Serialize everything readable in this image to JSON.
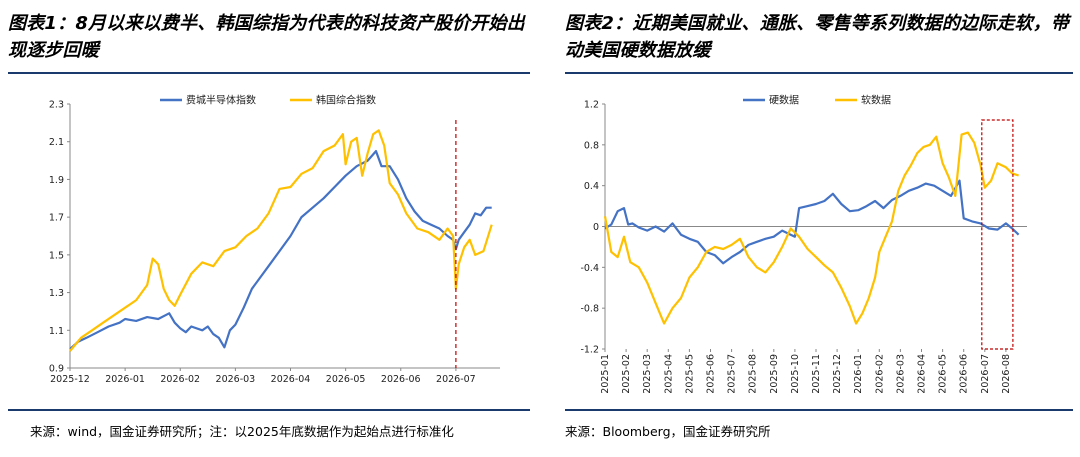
{
  "left": {
    "title": "图表1：8月以来以费半、韩国综指为代表的科技资产股价开始出现逐步回暖",
    "source": "来源：wind，国金证券研究所；注：以2025年底数据作为起始点进行标准化",
    "colors": {
      "sox": "#4472c4",
      "kospi": "#ffc000",
      "marker": "#c00000"
    },
    "chart_data": {
      "type": "line",
      "title": "",
      "xlabel": "",
      "ylabel": "",
      "ylim": [
        0.9,
        2.3
      ],
      "yticks": [
        "0.9",
        "1.1",
        "1.3",
        "1.5",
        "1.7",
        "1.9",
        "2.1",
        "2.3"
      ],
      "xticks": [
        "2025-12",
        "2026-01",
        "2026-02",
        "2026-03",
        "2026-04",
        "2026-05",
        "2026-06",
        "2026-07"
      ],
      "legend": "top-center",
      "grid": false,
      "vertical_marker_x": "2026-07",
      "series": [
        {
          "name": "费城半导体指数",
          "color": "#4472c4",
          "points": [
            [
              0,
              1.0
            ],
            [
              0.15,
              1.04
            ],
            [
              0.3,
              1.06
            ],
            [
              0.5,
              1.09
            ],
            [
              0.7,
              1.12
            ],
            [
              0.9,
              1.14
            ],
            [
              1.0,
              1.16
            ],
            [
              1.2,
              1.15
            ],
            [
              1.4,
              1.17
            ],
            [
              1.6,
              1.16
            ],
            [
              1.8,
              1.19
            ],
            [
              1.9,
              1.14
            ],
            [
              2.0,
              1.11
            ],
            [
              2.1,
              1.09
            ],
            [
              2.2,
              1.12
            ],
            [
              2.4,
              1.1
            ],
            [
              2.5,
              1.12
            ],
            [
              2.6,
              1.08
            ],
            [
              2.7,
              1.06
            ],
            [
              2.8,
              1.01
            ],
            [
              2.9,
              1.1
            ],
            [
              3.0,
              1.13
            ],
            [
              3.15,
              1.22
            ],
            [
              3.3,
              1.32
            ],
            [
              3.45,
              1.38
            ],
            [
              3.6,
              1.44
            ],
            [
              3.8,
              1.52
            ],
            [
              4.0,
              1.6
            ],
            [
              4.2,
              1.7
            ],
            [
              4.4,
              1.75
            ],
            [
              4.6,
              1.8
            ],
            [
              4.8,
              1.86
            ],
            [
              5.0,
              1.92
            ],
            [
              5.2,
              1.97
            ],
            [
              5.4,
              2.0
            ],
            [
              5.55,
              2.05
            ],
            [
              5.65,
              1.97
            ],
            [
              5.8,
              1.97
            ],
            [
              5.95,
              1.9
            ],
            [
              6.1,
              1.8
            ],
            [
              6.25,
              1.73
            ],
            [
              6.4,
              1.68
            ],
            [
              6.55,
              1.66
            ],
            [
              6.7,
              1.64
            ],
            [
              6.85,
              1.6
            ],
            [
              6.95,
              1.58
            ],
            [
              7.0,
              1.53
            ],
            [
              7.05,
              1.58
            ],
            [
              7.15,
              1.62
            ],
            [
              7.25,
              1.66
            ],
            [
              7.35,
              1.72
            ],
            [
              7.45,
              1.71
            ],
            [
              7.55,
              1.75
            ],
            [
              7.65,
              1.75
            ]
          ]
        },
        {
          "name": "韩国综合指数",
          "color": "#ffc000",
          "points": [
            [
              0,
              0.99
            ],
            [
              0.2,
              1.06
            ],
            [
              0.4,
              1.1
            ],
            [
              0.6,
              1.14
            ],
            [
              0.8,
              1.18
            ],
            [
              1.0,
              1.22
            ],
            [
              1.2,
              1.26
            ],
            [
              1.4,
              1.34
            ],
            [
              1.5,
              1.48
            ],
            [
              1.6,
              1.45
            ],
            [
              1.7,
              1.32
            ],
            [
              1.8,
              1.26
            ],
            [
              1.9,
              1.23
            ],
            [
              2.0,
              1.29
            ],
            [
              2.2,
              1.4
            ],
            [
              2.4,
              1.46
            ],
            [
              2.6,
              1.44
            ],
            [
              2.8,
              1.52
            ],
            [
              3.0,
              1.54
            ],
            [
              3.2,
              1.6
            ],
            [
              3.4,
              1.64
            ],
            [
              3.6,
              1.72
            ],
            [
              3.8,
              1.85
            ],
            [
              4.0,
              1.86
            ],
            [
              4.2,
              1.93
            ],
            [
              4.4,
              1.96
            ],
            [
              4.6,
              2.05
            ],
            [
              4.8,
              2.08
            ],
            [
              4.95,
              2.14
            ],
            [
              5.0,
              1.98
            ],
            [
              5.1,
              2.1
            ],
            [
              5.2,
              2.12
            ],
            [
              5.3,
              1.92
            ],
            [
              5.4,
              2.04
            ],
            [
              5.5,
              2.14
            ],
            [
              5.6,
              2.16
            ],
            [
              5.7,
              2.08
            ],
            [
              5.8,
              1.88
            ],
            [
              5.95,
              1.82
            ],
            [
              6.1,
              1.72
            ],
            [
              6.3,
              1.64
            ],
            [
              6.5,
              1.62
            ],
            [
              6.7,
              1.58
            ],
            [
              6.85,
              1.64
            ],
            [
              6.95,
              1.6
            ],
            [
              7.0,
              1.32
            ],
            [
              7.05,
              1.45
            ],
            [
              7.15,
              1.54
            ],
            [
              7.25,
              1.58
            ],
            [
              7.35,
              1.5
            ],
            [
              7.5,
              1.52
            ],
            [
              7.65,
              1.66
            ]
          ]
        }
      ]
    }
  },
  "right": {
    "title": "图表2：近期美国就业、通胀、零售等系列数据的边际走软，带动美国硬数据放缓",
    "source": "来源：Bloomberg，国金证券研究所",
    "colors": {
      "hard": "#4472c4",
      "soft": "#ffc000",
      "box": "#c00000"
    },
    "chart_data": {
      "type": "line",
      "title": "",
      "xlabel": "",
      "ylabel": "",
      "ylim": [
        -1.2,
        1.2
      ],
      "yticks": [
        "-1.2",
        "-0.8",
        "-0.4",
        "0",
        "0.4",
        "0.8",
        "1.2"
      ],
      "xticks": [
        "2025-01",
        "2025-02",
        "2025-03",
        "2025-04",
        "2025-05",
        "2025-06",
        "2025-07",
        "2025-08",
        "2025-09",
        "2025-10",
        "2025-11",
        "2025-12",
        "2026-01",
        "2026-02",
        "2026-03",
        "2026-04",
        "2026-05",
        "2026-06",
        "2026-07",
        "2026-08"
      ],
      "legend": "top-left",
      "grid": false,
      "highlight_box_x": [
        "2026-07",
        "2026-08"
      ],
      "series": [
        {
          "name": "硬数据",
          "color": "#4472c4",
          "points": [
            [
              0,
              -0.02
            ],
            [
              0.3,
              0.02
            ],
            [
              0.6,
              0.15
            ],
            [
              0.9,
              0.18
            ],
            [
              1.1,
              0.02
            ],
            [
              1.3,
              0.03
            ],
            [
              1.6,
              -0.01
            ],
            [
              2.0,
              -0.04
            ],
            [
              2.4,
              0.0
            ],
            [
              2.8,
              -0.05
            ],
            [
              3.2,
              0.03
            ],
            [
              3.6,
              -0.08
            ],
            [
              4.0,
              -0.12
            ],
            [
              4.4,
              -0.15
            ],
            [
              4.8,
              -0.25
            ],
            [
              5.2,
              -0.28
            ],
            [
              5.6,
              -0.36
            ],
            [
              6.0,
              -0.3
            ],
            [
              6.4,
              -0.25
            ],
            [
              6.8,
              -0.18
            ],
            [
              7.2,
              -0.15
            ],
            [
              7.6,
              -0.12
            ],
            [
              8.0,
              -0.1
            ],
            [
              8.4,
              -0.04
            ],
            [
              8.8,
              -0.08
            ],
            [
              9.0,
              -0.1
            ],
            [
              9.2,
              0.18
            ],
            [
              9.6,
              0.2
            ],
            [
              10.0,
              0.22
            ],
            [
              10.4,
              0.25
            ],
            [
              10.8,
              0.32
            ],
            [
              11.2,
              0.22
            ],
            [
              11.6,
              0.15
            ],
            [
              12.0,
              0.16
            ],
            [
              12.4,
              0.2
            ],
            [
              12.8,
              0.25
            ],
            [
              13.2,
              0.18
            ],
            [
              13.6,
              0.26
            ],
            [
              14.0,
              0.3
            ],
            [
              14.4,
              0.35
            ],
            [
              14.8,
              0.38
            ],
            [
              15.2,
              0.42
            ],
            [
              15.6,
              0.4
            ],
            [
              16.0,
              0.35
            ],
            [
              16.4,
              0.3
            ],
            [
              16.8,
              0.45
            ],
            [
              17.0,
              0.08
            ],
            [
              17.4,
              0.05
            ],
            [
              17.8,
              0.03
            ],
            [
              18.2,
              -0.02
            ],
            [
              18.6,
              -0.03
            ],
            [
              19.0,
              0.03
            ],
            [
              19.3,
              -0.02
            ],
            [
              19.6,
              -0.08
            ]
          ]
        },
        {
          "name": "软数据",
          "color": "#ffc000",
          "points": [
            [
              0,
              0.1
            ],
            [
              0.3,
              -0.25
            ],
            [
              0.6,
              -0.3
            ],
            [
              0.9,
              -0.1
            ],
            [
              1.2,
              -0.35
            ],
            [
              1.6,
              -0.4
            ],
            [
              2.0,
              -0.55
            ],
            [
              2.4,
              -0.75
            ],
            [
              2.8,
              -0.95
            ],
            [
              3.2,
              -0.8
            ],
            [
              3.6,
              -0.7
            ],
            [
              4.0,
              -0.5
            ],
            [
              4.4,
              -0.4
            ],
            [
              4.8,
              -0.25
            ],
            [
              5.2,
              -0.2
            ],
            [
              5.6,
              -0.22
            ],
            [
              6.0,
              -0.18
            ],
            [
              6.4,
              -0.12
            ],
            [
              6.8,
              -0.3
            ],
            [
              7.2,
              -0.4
            ],
            [
              7.6,
              -0.45
            ],
            [
              8.0,
              -0.35
            ],
            [
              8.4,
              -0.2
            ],
            [
              8.8,
              -0.02
            ],
            [
              9.2,
              -0.1
            ],
            [
              9.6,
              -0.22
            ],
            [
              10.0,
              -0.3
            ],
            [
              10.4,
              -0.38
            ],
            [
              10.8,
              -0.45
            ],
            [
              11.2,
              -0.6
            ],
            [
              11.6,
              -0.78
            ],
            [
              11.9,
              -0.95
            ],
            [
              12.2,
              -0.85
            ],
            [
              12.5,
              -0.7
            ],
            [
              12.8,
              -0.5
            ],
            [
              13.0,
              -0.25
            ],
            [
              13.3,
              -0.1
            ],
            [
              13.6,
              0.05
            ],
            [
              13.9,
              0.35
            ],
            [
              14.2,
              0.5
            ],
            [
              14.5,
              0.6
            ],
            [
              14.8,
              0.72
            ],
            [
              15.1,
              0.78
            ],
            [
              15.4,
              0.8
            ],
            [
              15.7,
              0.88
            ],
            [
              16.0,
              0.62
            ],
            [
              16.3,
              0.48
            ],
            [
              16.6,
              0.3
            ],
            [
              16.9,
              0.9
            ],
            [
              17.2,
              0.92
            ],
            [
              17.5,
              0.82
            ],
            [
              17.8,
              0.6
            ],
            [
              18.0,
              0.38
            ],
            [
              18.3,
              0.45
            ],
            [
              18.6,
              0.62
            ],
            [
              19.0,
              0.58
            ],
            [
              19.3,
              0.52
            ],
            [
              19.6,
              0.5
            ]
          ]
        }
      ]
    }
  }
}
